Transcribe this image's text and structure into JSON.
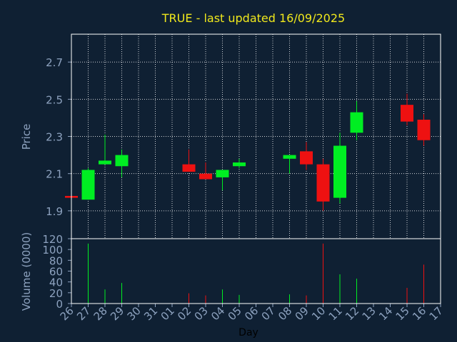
{
  "title": "TRUE - last updated 16/09/2025",
  "colors": {
    "background": "#0f2033",
    "title": "#f0e81c",
    "axis": "#8da2bf",
    "up": "#00ee22",
    "down": "#ee1111",
    "grid": "#ffffff"
  },
  "chart_data": [
    {
      "type": "candlestick",
      "ylabel": "Price",
      "ylim": [
        1.75,
        2.85
      ],
      "yticks": [
        "1.9",
        "2.1",
        "2.3",
        "2.5",
        "2.7"
      ],
      "grid": true,
      "candles": [
        {
          "day": "26",
          "open": 1.98,
          "high": 1.98,
          "low": 1.97,
          "close": 1.97
        },
        {
          "day": "27",
          "open": 1.96,
          "high": 2.13,
          "low": 1.96,
          "close": 2.12
        },
        {
          "day": "28",
          "open": 2.15,
          "high": 2.31,
          "low": 2.15,
          "close": 2.17
        },
        {
          "day": "29",
          "open": 2.14,
          "high": 2.23,
          "low": 2.08,
          "close": 2.2
        },
        {
          "day": "02",
          "open": 2.15,
          "high": 2.23,
          "low": 2.11,
          "close": 2.11
        },
        {
          "day": "03",
          "open": 2.1,
          "high": 2.16,
          "low": 2.07,
          "close": 2.07
        },
        {
          "day": "04",
          "open": 2.08,
          "high": 2.12,
          "low": 2.01,
          "close": 2.12
        },
        {
          "day": "05",
          "open": 2.14,
          "high": 2.18,
          "low": 2.13,
          "close": 2.16
        },
        {
          "day": "08",
          "open": 2.18,
          "high": 2.2,
          "low": 2.1,
          "close": 2.2
        },
        {
          "day": "09",
          "open": 2.22,
          "high": 2.27,
          "low": 2.12,
          "close": 2.15
        },
        {
          "day": "10",
          "open": 2.15,
          "high": 2.18,
          "low": 1.9,
          "close": 1.95
        },
        {
          "day": "11",
          "open": 1.97,
          "high": 2.32,
          "low": 1.94,
          "close": 2.25
        },
        {
          "day": "12",
          "open": 2.32,
          "high": 2.49,
          "low": 2.28,
          "close": 2.43
        },
        {
          "day": "15",
          "open": 2.47,
          "high": 2.53,
          "low": 2.36,
          "close": 2.38
        },
        {
          "day": "16",
          "open": 2.39,
          "high": 2.42,
          "low": 2.25,
          "close": 2.28
        }
      ]
    },
    {
      "type": "bar",
      "ylabel": "Volume (0000)",
      "xlabel": "Day",
      "ylim": [
        0,
        120
      ],
      "yticks": [
        "0",
        "20",
        "40",
        "60",
        "80",
        "100",
        "120"
      ],
      "categories": [
        "26",
        "27",
        "28",
        "29",
        "30",
        "31",
        "01",
        "02",
        "03",
        "04",
        "05",
        "06",
        "07",
        "08",
        "09",
        "10",
        "11",
        "12",
        "13",
        "14",
        "15",
        "16",
        "17"
      ],
      "volumes": [
        {
          "day": "26",
          "value": 0,
          "direction": "down"
        },
        {
          "day": "27",
          "value": 111,
          "direction": "up"
        },
        {
          "day": "28",
          "value": 26,
          "direction": "up"
        },
        {
          "day": "29",
          "value": 38,
          "direction": "up"
        },
        {
          "day": "02",
          "value": 19,
          "direction": "down"
        },
        {
          "day": "03",
          "value": 15,
          "direction": "down"
        },
        {
          "day": "04",
          "value": 26,
          "direction": "up"
        },
        {
          "day": "05",
          "value": 16,
          "direction": "up"
        },
        {
          "day": "08",
          "value": 17,
          "direction": "up"
        },
        {
          "day": "09",
          "value": 15,
          "direction": "down"
        },
        {
          "day": "10",
          "value": 111,
          "direction": "down"
        },
        {
          "day": "11",
          "value": 54,
          "direction": "up"
        },
        {
          "day": "12",
          "value": 46,
          "direction": "up"
        },
        {
          "day": "15",
          "value": 29,
          "direction": "down"
        },
        {
          "day": "16",
          "value": 72,
          "direction": "down"
        }
      ]
    }
  ]
}
